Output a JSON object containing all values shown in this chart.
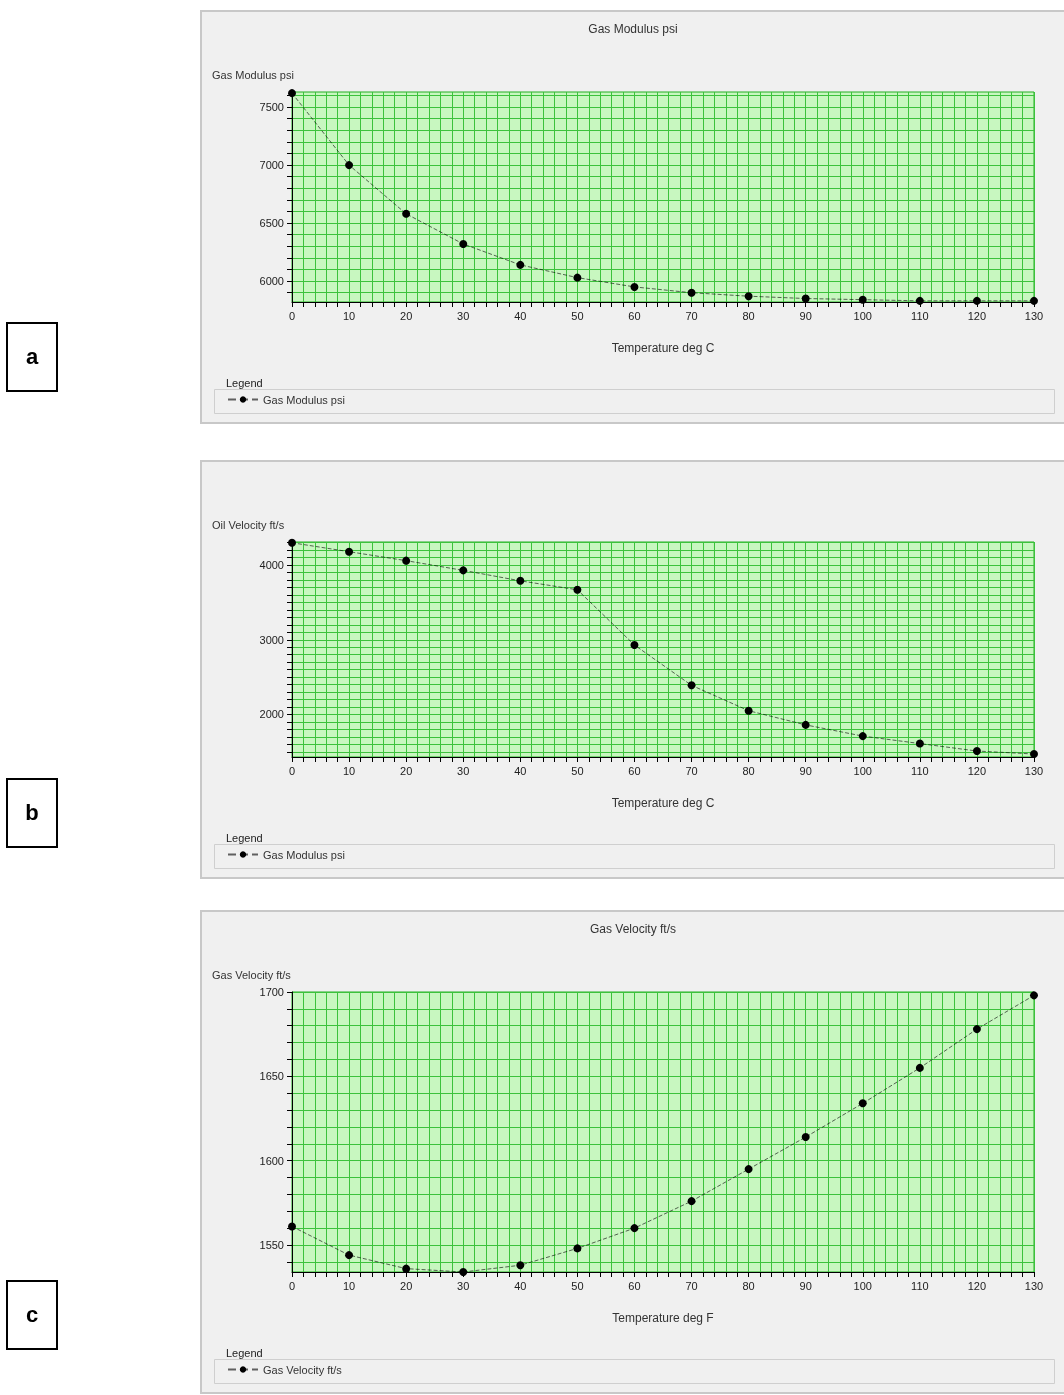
{
  "chart_data": [
    {
      "type": "line",
      "title": "Gas Modulus psi",
      "xlabel": "Temperature deg C",
      "ylabel": "Gas Modulus psi",
      "legend_title": "Legend",
      "annotations": [
        "a"
      ],
      "x": [
        0,
        10,
        20,
        30,
        40,
        50,
        60,
        70,
        80,
        90,
        100,
        110,
        120,
        130
      ],
      "series": [
        {
          "name": "Gas Modulus psi",
          "color": "#000000",
          "values": [
            7620,
            7000,
            6580,
            6320,
            6140,
            6030,
            5950,
            5900,
            5870,
            5850,
            5840,
            5830,
            5830,
            5830
          ]
        }
      ],
      "xlim": [
        0,
        130
      ],
      "xticks": [
        0,
        {
          "value": 2,
          "label": null
        },
        {
          "value": 4,
          "label": null
        },
        {
          "value": 6,
          "label": null
        },
        {
          "value": 8,
          "label": null
        },
        10,
        {
          "value": 12,
          "label": null
        },
        {
          "value": 14,
          "label": null
        },
        {
          "value": 16,
          "label": null
        },
        {
          "value": 18,
          "label": null
        },
        20,
        {
          "value": 22,
          "label": null
        },
        {
          "value": 24,
          "label": null
        },
        {
          "value": 26,
          "label": null
        },
        {
          "value": 28,
          "label": null
        },
        30,
        {
          "value": 32,
          "label": null
        },
        {
          "value": 34,
          "label": null
        },
        {
          "value": 36,
          "label": null
        },
        {
          "value": 38,
          "label": null
        },
        40,
        {
          "value": 42,
          "label": null
        },
        {
          "value": 44,
          "label": null
        },
        {
          "value": 46,
          "label": null
        },
        {
          "value": 48,
          "label": null
        },
        50,
        {
          "value": 52,
          "label": null
        },
        {
          "value": 54,
          "label": null
        },
        {
          "value": 56,
          "label": null
        },
        {
          "value": 58,
          "label": null
        },
        60,
        {
          "value": 62,
          "label": null
        },
        {
          "value": 64,
          "label": null
        },
        {
          "value": 66,
          "label": null
        },
        {
          "value": 68,
          "label": null
        },
        70,
        {
          "value": 72,
          "label": null
        },
        {
          "value": 74,
          "label": null
        },
        {
          "value": 76,
          "label": null
        },
        {
          "value": 78,
          "label": null
        },
        80,
        {
          "value": 82,
          "label": null
        },
        {
          "value": 84,
          "label": null
        },
        {
          "value": 86,
          "label": null
        },
        {
          "value": 88,
          "label": null
        },
        90,
        {
          "value": 92,
          "label": null
        },
        {
          "value": 94,
          "label": null
        },
        {
          "value": 96,
          "label": null
        },
        {
          "value": 98,
          "label": null
        },
        100,
        {
          "value": 102,
          "label": null
        },
        {
          "value": 104,
          "label": null
        },
        {
          "value": 106,
          "label": null
        },
        {
          "value": 108,
          "label": null
        },
        110,
        {
          "value": 112,
          "label": null
        },
        {
          "value": 114,
          "label": null
        },
        {
          "value": 116,
          "label": null
        },
        {
          "value": 118,
          "label": null
        },
        120,
        {
          "value": 122,
          "label": null
        },
        {
          "value": 124,
          "label": null
        },
        {
          "value": 126,
          "label": null
        },
        {
          "value": 128,
          "label": null
        },
        130
      ],
      "ylim": [
        5820,
        7630
      ],
      "yticks": [
        {
          "value": 5900,
          "label": null
        },
        6000,
        {
          "value": 6100,
          "label": null
        },
        {
          "value": 6200,
          "label": null
        },
        {
          "value": 6300,
          "label": null
        },
        {
          "value": 6400,
          "label": null
        },
        6500,
        {
          "value": 6600,
          "label": null
        },
        {
          "value": 6700,
          "label": null
        },
        {
          "value": 6800,
          "label": null
        },
        {
          "value": 6900,
          "label": null
        },
        7000,
        {
          "value": 7100,
          "label": null
        },
        {
          "value": 7200,
          "label": null
        },
        {
          "value": 7300,
          "label": null
        },
        {
          "value": 7400,
          "label": null
        },
        7500,
        {
          "value": 7600,
          "label": null
        }
      ],
      "grid": true,
      "legend": "bottom left",
      "marker": "circle",
      "line_style": "dashed"
    },
    {
      "type": "line",
      "xlabel": "Temperature deg C",
      "ylabel": "Oil Velocity ft/s",
      "legend_title": "Legend",
      "annotations": [
        "b"
      ],
      "x": [
        0,
        10,
        20,
        30,
        40,
        50,
        60,
        70,
        80,
        90,
        100,
        110,
        120,
        130
      ],
      "series": [
        {
          "name": "Gas Modulus psi",
          "color": "#000000",
          "values": [
            4300,
            4180,
            4060,
            3930,
            3790,
            3670,
            2930,
            2390,
            2050,
            1860,
            1710,
            1610,
            1510,
            1470
          ]
        }
      ],
      "xlim": [
        0,
        130
      ],
      "xticks": [
        0,
        {
          "value": 2,
          "label": null
        },
        {
          "value": 4,
          "label": null
        },
        {
          "value": 6,
          "label": null
        },
        {
          "value": 8,
          "label": null
        },
        10,
        {
          "value": 12,
          "label": null
        },
        {
          "value": 14,
          "label": null
        },
        {
          "value": 16,
          "label": null
        },
        {
          "value": 18,
          "label": null
        },
        20,
        {
          "value": 22,
          "label": null
        },
        {
          "value": 24,
          "label": null
        },
        {
          "value": 26,
          "label": null
        },
        {
          "value": 28,
          "label": null
        },
        30,
        {
          "value": 32,
          "label": null
        },
        {
          "value": 34,
          "label": null
        },
        {
          "value": 36,
          "label": null
        },
        {
          "value": 38,
          "label": null
        },
        40,
        {
          "value": 42,
          "label": null
        },
        {
          "value": 44,
          "label": null
        },
        {
          "value": 46,
          "label": null
        },
        {
          "value": 48,
          "label": null
        },
        50,
        {
          "value": 52,
          "label": null
        },
        {
          "value": 54,
          "label": null
        },
        {
          "value": 56,
          "label": null
        },
        {
          "value": 58,
          "label": null
        },
        60,
        {
          "value": 62,
          "label": null
        },
        {
          "value": 64,
          "label": null
        },
        {
          "value": 66,
          "label": null
        },
        {
          "value": 68,
          "label": null
        },
        70,
        {
          "value": 72,
          "label": null
        },
        {
          "value": 74,
          "label": null
        },
        {
          "value": 76,
          "label": null
        },
        {
          "value": 78,
          "label": null
        },
        80,
        {
          "value": 82,
          "label": null
        },
        {
          "value": 84,
          "label": null
        },
        {
          "value": 86,
          "label": null
        },
        {
          "value": 88,
          "label": null
        },
        90,
        {
          "value": 92,
          "label": null
        },
        {
          "value": 94,
          "label": null
        },
        {
          "value": 96,
          "label": null
        },
        {
          "value": 98,
          "label": null
        },
        100,
        {
          "value": 102,
          "label": null
        },
        {
          "value": 104,
          "label": null
        },
        {
          "value": 106,
          "label": null
        },
        {
          "value": 108,
          "label": null
        },
        110,
        {
          "value": 112,
          "label": null
        },
        {
          "value": 114,
          "label": null
        },
        {
          "value": 116,
          "label": null
        },
        {
          "value": 118,
          "label": null
        },
        120,
        {
          "value": 122,
          "label": null
        },
        {
          "value": 124,
          "label": null
        },
        {
          "value": 126,
          "label": null
        },
        {
          "value": 128,
          "label": null
        },
        130
      ],
      "ylim": [
        1430,
        4310
      ],
      "yticks": [
        {
          "value": 1500,
          "label": null
        },
        {
          "value": 1600,
          "label": null
        },
        {
          "value": 1700,
          "label": null
        },
        {
          "value": 1800,
          "label": null
        },
        {
          "value": 1900,
          "label": null
        },
        2000,
        {
          "value": 2100,
          "label": null
        },
        {
          "value": 2200,
          "label": null
        },
        {
          "value": 2300,
          "label": null
        },
        {
          "value": 2400,
          "label": null
        },
        {
          "value": 2500,
          "label": null
        },
        {
          "value": 2600,
          "label": null
        },
        {
          "value": 2700,
          "label": null
        },
        {
          "value": 2800,
          "label": null
        },
        {
          "value": 2900,
          "label": null
        },
        3000,
        {
          "value": 3100,
          "label": null
        },
        {
          "value": 3200,
          "label": null
        },
        {
          "value": 3300,
          "label": null
        },
        {
          "value": 3400,
          "label": null
        },
        {
          "value": 3500,
          "label": null
        },
        {
          "value": 3600,
          "label": null
        },
        {
          "value": 3700,
          "label": null
        },
        {
          "value": 3800,
          "label": null
        },
        {
          "value": 3900,
          "label": null
        },
        4000,
        {
          "value": 4100,
          "label": null
        },
        {
          "value": 4200,
          "label": null
        },
        {
          "value": 4300,
          "label": null
        }
      ],
      "grid": true,
      "legend": "bottom left",
      "marker": "circle",
      "line_style": "dashed"
    },
    {
      "type": "line",
      "title": "Gas Velocity ft/s",
      "xlabel": "Temperature deg F",
      "ylabel": "Gas Velocity ft/s",
      "legend_title": "Legend",
      "annotations": [
        "c"
      ],
      "x": [
        0,
        10,
        20,
        30,
        40,
        50,
        60,
        70,
        80,
        90,
        100,
        110,
        120,
        130
      ],
      "series": [
        {
          "name": "Gas Velocity ft/s",
          "color": "#000000",
          "values": [
            1561,
            1544,
            1536,
            1534,
            1538,
            1548,
            1560,
            1576,
            1595,
            1614,
            1634,
            1655,
            1678,
            1698
          ]
        }
      ],
      "xlim": [
        0,
        130
      ],
      "xticks": [
        0,
        {
          "value": 2,
          "label": null
        },
        {
          "value": 4,
          "label": null
        },
        {
          "value": 6,
          "label": null
        },
        {
          "value": 8,
          "label": null
        },
        10,
        {
          "value": 12,
          "label": null
        },
        {
          "value": 14,
          "label": null
        },
        {
          "value": 16,
          "label": null
        },
        {
          "value": 18,
          "label": null
        },
        20,
        {
          "value": 22,
          "label": null
        },
        {
          "value": 24,
          "label": null
        },
        {
          "value": 26,
          "label": null
        },
        {
          "value": 28,
          "label": null
        },
        30,
        {
          "value": 32,
          "label": null
        },
        {
          "value": 34,
          "label": null
        },
        {
          "value": 36,
          "label": null
        },
        {
          "value": 38,
          "label": null
        },
        40,
        {
          "value": 42,
          "label": null
        },
        {
          "value": 44,
          "label": null
        },
        {
          "value": 46,
          "label": null
        },
        {
          "value": 48,
          "label": null
        },
        50,
        {
          "value": 52,
          "label": null
        },
        {
          "value": 54,
          "label": null
        },
        {
          "value": 56,
          "label": null
        },
        {
          "value": 58,
          "label": null
        },
        60,
        {
          "value": 62,
          "label": null
        },
        {
          "value": 64,
          "label": null
        },
        {
          "value": 66,
          "label": null
        },
        {
          "value": 68,
          "label": null
        },
        70,
        {
          "value": 72,
          "label": null
        },
        {
          "value": 74,
          "label": null
        },
        {
          "value": 76,
          "label": null
        },
        {
          "value": 78,
          "label": null
        },
        80,
        {
          "value": 82,
          "label": null
        },
        {
          "value": 84,
          "label": null
        },
        {
          "value": 86,
          "label": null
        },
        {
          "value": 88,
          "label": null
        },
        90,
        {
          "value": 92,
          "label": null
        },
        {
          "value": 94,
          "label": null
        },
        {
          "value": 96,
          "label": null
        },
        {
          "value": 98,
          "label": null
        },
        100,
        {
          "value": 102,
          "label": null
        },
        {
          "value": 104,
          "label": null
        },
        {
          "value": 106,
          "label": null
        },
        {
          "value": 108,
          "label": null
        },
        110,
        {
          "value": 112,
          "label": null
        },
        {
          "value": 114,
          "label": null
        },
        {
          "value": 116,
          "label": null
        },
        {
          "value": 118,
          "label": null
        },
        120,
        {
          "value": 122,
          "label": null
        },
        {
          "value": 124,
          "label": null
        },
        {
          "value": 126,
          "label": null
        },
        {
          "value": 128,
          "label": null
        },
        130
      ],
      "ylim": [
        1534,
        1700
      ],
      "yticks": [
        {
          "value": 1540,
          "label": null
        },
        1550,
        {
          "value": 1560,
          "label": null
        },
        {
          "value": 1570,
          "label": null
        },
        {
          "value": 1580,
          "label": null
        },
        {
          "value": 1590,
          "label": null
        },
        1600,
        {
          "value": 1610,
          "label": null
        },
        {
          "value": 1620,
          "label": null
        },
        {
          "value": 1630,
          "label": null
        },
        {
          "value": 1640,
          "label": null
        },
        1650,
        {
          "value": 1660,
          "label": null
        },
        {
          "value": 1670,
          "label": null
        },
        {
          "value": 1680,
          "label": null
        },
        {
          "value": 1690,
          "label": null
        },
        1700
      ],
      "grid": true,
      "legend": "bottom left",
      "marker": "circle",
      "line_style": "dashed"
    }
  ]
}
